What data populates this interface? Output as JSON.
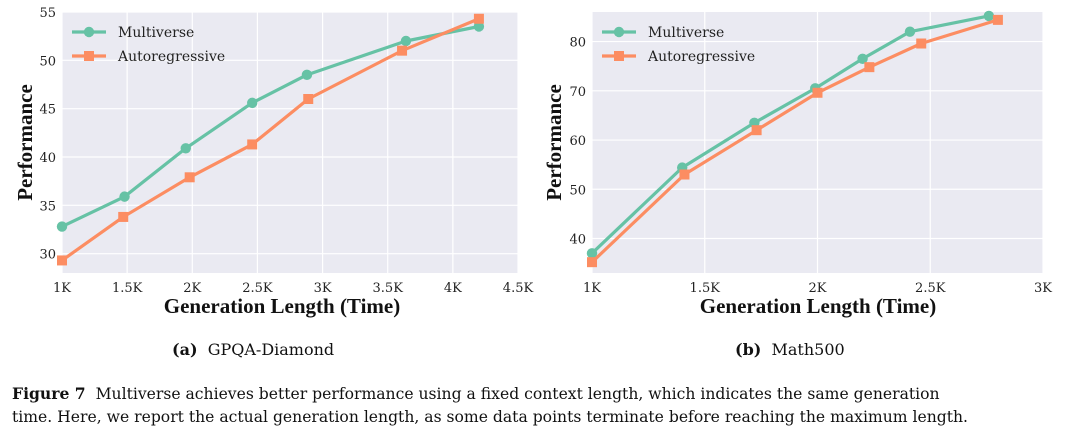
{
  "colors": {
    "multiverse": "#66c2a5",
    "autoregressive": "#fc8d62",
    "plot_bg": "#eaeaf2",
    "grid": "#ffffff"
  },
  "chart_data": [
    {
      "type": "line",
      "title": "",
      "xlabel": "Generation Length (Time)",
      "ylabel": "Performance",
      "xlim": [
        1000,
        4500
      ],
      "ylim": [
        28,
        55
      ],
      "xticks": [
        1000,
        1500,
        2000,
        2500,
        3000,
        3500,
        4000,
        4500
      ],
      "xtick_labels": [
        "1K",
        "1.5K",
        "2K",
        "2.5K",
        "3K",
        "3.5K",
        "4K",
        "4.5K"
      ],
      "yticks": [
        30,
        35,
        40,
        45,
        50,
        55
      ],
      "ytick_labels": [
        "30",
        "35",
        "40",
        "45",
        "50",
        "55"
      ],
      "legend_position": "top-left",
      "series": [
        {
          "name": "Multiverse",
          "marker": "circle",
          "x": [
            1000,
            1480,
            1950,
            2460,
            2880,
            3640,
            4200
          ],
          "y": [
            32.8,
            35.9,
            40.9,
            45.6,
            48.5,
            52.0,
            53.5
          ]
        },
        {
          "name": "Autoregressive",
          "marker": "square",
          "x": [
            1000,
            1470,
            1980,
            2460,
            2890,
            3610,
            4200
          ],
          "y": [
            29.3,
            33.8,
            37.9,
            41.3,
            46.0,
            51.0,
            54.3
          ]
        }
      ]
    },
    {
      "type": "line",
      "title": "",
      "xlabel": "Generation Length (Time)",
      "ylabel": "Performance",
      "xlim": [
        1000,
        3000
      ],
      "ylim": [
        33,
        86
      ],
      "xticks": [
        1000,
        1500,
        2000,
        2500,
        3000
      ],
      "xtick_labels": [
        "1K",
        "1.5K",
        "2K",
        "2.5K",
        "3K"
      ],
      "yticks": [
        40,
        50,
        60,
        70,
        80
      ],
      "ytick_labels": [
        "40",
        "50",
        "60",
        "70",
        "80"
      ],
      "legend_position": "top-left",
      "series": [
        {
          "name": "Multiverse",
          "marker": "circle",
          "x": [
            1000,
            1400,
            1720,
            1990,
            2200,
            2410,
            2760
          ],
          "y": [
            37.0,
            54.4,
            63.5,
            70.5,
            76.5,
            82.0,
            85.2
          ]
        },
        {
          "name": "Autoregressive",
          "marker": "square",
          "x": [
            1000,
            1410,
            1730,
            2000,
            2230,
            2460,
            2800
          ],
          "y": [
            35.2,
            53.0,
            62.0,
            69.6,
            74.8,
            79.6,
            84.4
          ]
        }
      ]
    }
  ],
  "subcaptions": [
    {
      "label": "(a)",
      "text": "GPQA-Diamond"
    },
    {
      "label": "(b)",
      "text": "Math500"
    }
  ],
  "caption": {
    "figure_label": "Figure 7",
    "line1": "Multiverse achieves better performance using a fixed context length, which indicates the same generation",
    "line2": "time. Here, we report the actual generation length, as some data points terminate before reaching the maximum length."
  }
}
